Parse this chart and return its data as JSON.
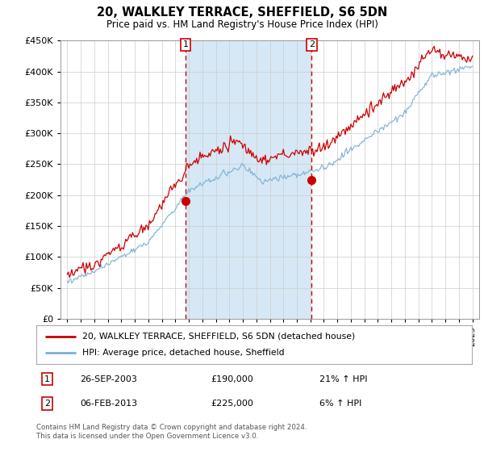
{
  "title": "20, WALKLEY TERRACE, SHEFFIELD, S6 5DN",
  "subtitle": "Price paid vs. HM Land Registry's House Price Index (HPI)",
  "legend_line1": "20, WALKLEY TERRACE, SHEFFIELD, S6 5DN (detached house)",
  "legend_line2": "HPI: Average price, detached house, Sheffield",
  "annotation1_date": "26-SEP-2003",
  "annotation1_price": "£190,000",
  "annotation1_hpi": "21% ↑ HPI",
  "annotation2_date": "06-FEB-2013",
  "annotation2_price": "£225,000",
  "annotation2_hpi": "6% ↑ HPI",
  "footer": "Contains HM Land Registry data © Crown copyright and database right 2024.\nThis data is licensed under the Open Government Licence v3.0.",
  "vline1_x": 2003.75,
  "vline2_x": 2013.1,
  "sale1_x": 2003.75,
  "sale1_y": 190000,
  "sale2_x": 2013.1,
  "sale2_y": 225000,
  "hpi_line_color": "#7ab0d4",
  "sale_line_color": "#cc0000",
  "vline_color": "#cc0000",
  "highlight_color": "#d6e8f5",
  "plot_bg_color": "#ffffff",
  "grid_color": "#cccccc",
  "ylim": [
    0,
    450000
  ],
  "xlim": [
    1994.5,
    2025.5
  ],
  "yticks": [
    0,
    50000,
    100000,
    150000,
    200000,
    250000,
    300000,
    350000,
    400000,
    450000
  ],
  "xticks": [
    1995,
    1996,
    1997,
    1998,
    1999,
    2000,
    2001,
    2002,
    2003,
    2004,
    2005,
    2006,
    2007,
    2008,
    2009,
    2010,
    2011,
    2012,
    2013,
    2014,
    2015,
    2016,
    2017,
    2018,
    2019,
    2020,
    2021,
    2022,
    2023,
    2024,
    2025
  ]
}
